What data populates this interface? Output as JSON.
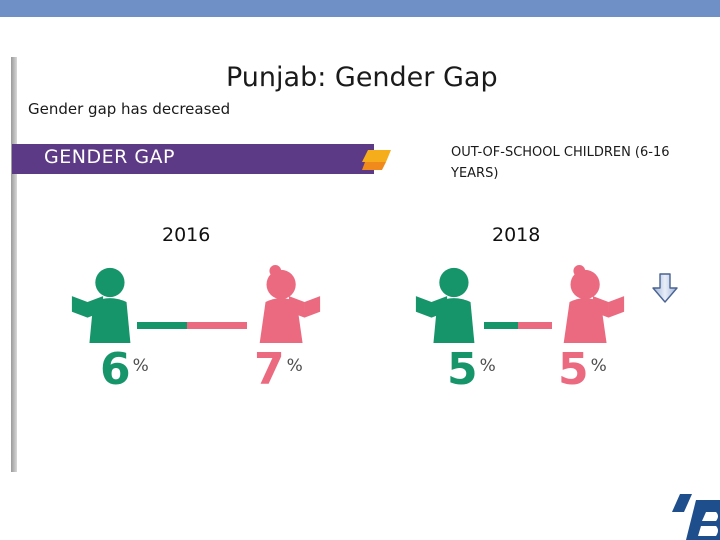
{
  "title": "Punjab: Gender Gap",
  "subtitle": "Gender gap has decreased",
  "banner": {
    "label": "GENDER GAP"
  },
  "out_of_school_label": "OUT-OF-SCHOOL CHILDREN (6-16 YEARS)",
  "colors": {
    "boy": "#16956b",
    "girl": "#ec6a80",
    "banner": "#5d3a86",
    "accent": "#f6ad1b",
    "pct_text": "#4e4e4e"
  },
  "years": [
    {
      "year": "2016",
      "boy_pct": "6",
      "girl_pct": "7",
      "pct_symbol": "%"
    },
    {
      "year": "2018",
      "boy_pct": "5",
      "girl_pct": "5",
      "pct_symbol": "%"
    }
  ],
  "icons": {
    "boy": "boy-reading-icon",
    "girl": "girl-reading-icon",
    "banner": "pencil-icon",
    "arrow": "down-arrow-icon",
    "logo": "logo-icon"
  }
}
